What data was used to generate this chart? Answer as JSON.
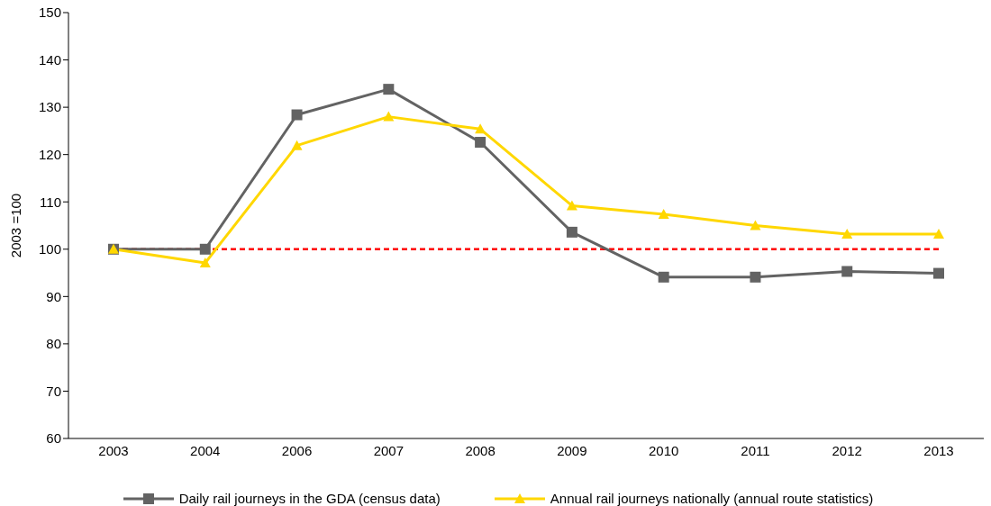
{
  "chart_data": {
    "type": "line",
    "ylabel": "2003 =100",
    "categories": [
      "2003",
      "2004",
      "2006",
      "2007",
      "2008",
      "2009",
      "2010",
      "2011",
      "2012",
      "2013"
    ],
    "series": [
      {
        "name": "Daily rail journeys in the GDA (census data)",
        "color": "#636363",
        "marker": "square",
        "values": [
          100,
          100,
          128.4,
          133.8,
          122.6,
          103.6,
          94.1,
          94.1,
          95.3,
          94.9
        ]
      },
      {
        "name": "Annual rail journeys nationally (annual route statistics)",
        "color": "#ffd700",
        "marker": "triangle",
        "values": [
          100,
          97.1,
          121.9,
          128,
          125.4,
          109.2,
          107.4,
          105,
          103.2,
          103.2
        ]
      }
    ],
    "ylim": [
      60,
      150
    ],
    "yticks": [
      60,
      70,
      80,
      90,
      100,
      110,
      120,
      130,
      140,
      150
    ],
    "grid": false,
    "legend": "bottom",
    "line_style": "solid",
    "ref_lines": [
      {
        "axis": "y",
        "value": 100,
        "color": "#ff0000",
        "line_style": "dashed"
      }
    ]
  }
}
